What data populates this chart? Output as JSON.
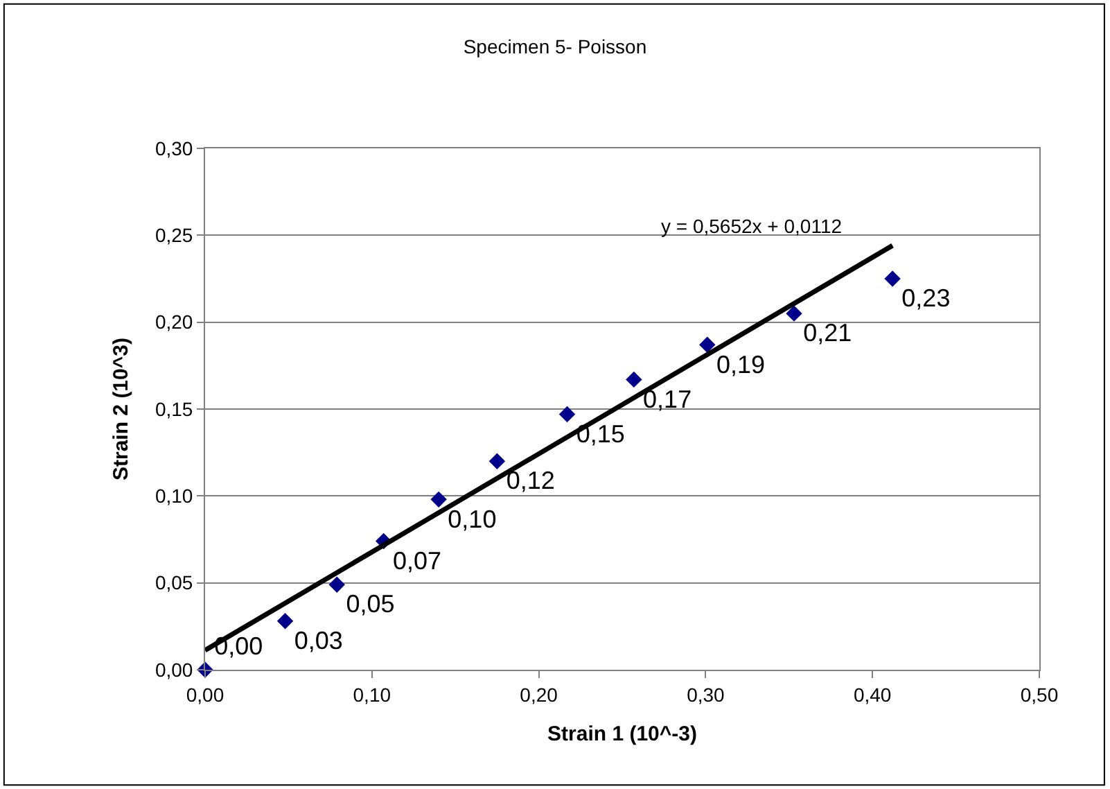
{
  "chart_data": {
    "type": "scatter",
    "title": "Specimen 5- Poisson",
    "xlabel": "Strain 1 (10^-3)",
    "ylabel": "Strain 2 (10^3)",
    "xlim": [
      0,
      0.5
    ],
    "ylim": [
      0,
      0.3
    ],
    "xticks": [
      {
        "value": 0,
        "label": "0,00"
      },
      {
        "value": 0.1,
        "label": "0,10"
      },
      {
        "value": 0.2,
        "label": "0,20"
      },
      {
        "value": 0.3,
        "label": "0,30"
      },
      {
        "value": 0.4,
        "label": "0,40"
      },
      {
        "value": 0.5,
        "label": "0,50"
      }
    ],
    "yticks": [
      {
        "value": 0,
        "label": "0,00"
      },
      {
        "value": 0.05,
        "label": "0,05"
      },
      {
        "value": 0.1,
        "label": "0,10"
      },
      {
        "value": 0.15,
        "label": "0,15"
      },
      {
        "value": 0.2,
        "label": "0,20"
      },
      {
        "value": 0.25,
        "label": "0,25"
      },
      {
        "value": 0.3,
        "label": "0,30"
      }
    ],
    "grid": "y",
    "series": [
      {
        "marker": "diamond",
        "color": "#00008b",
        "x": [
          0,
          0.048,
          0.079,
          0.107,
          0.14,
          0.175,
          0.217,
          0.257,
          0.301,
          0.353,
          0.412
        ],
        "values": [
          0,
          0.028,
          0.049,
          0.074,
          0.098,
          0.12,
          0.147,
          0.167,
          0.187,
          0.205,
          0.225
        ],
        "value_labels": [
          "0,00",
          "0,03",
          "0,05",
          "0,07",
          "0,10",
          "0,12",
          "0,15",
          "0,17",
          "0,19",
          "0,21",
          "0,23"
        ]
      },
      {
        "type": "line",
        "marker": "none",
        "line_style": "solid",
        "color": "#000000",
        "x": [
          0,
          0.412
        ],
        "values": [
          0.0112,
          0.2441
        ]
      }
    ],
    "annotations": [
      "y = 0,5652x + 0,0112"
    ]
  }
}
